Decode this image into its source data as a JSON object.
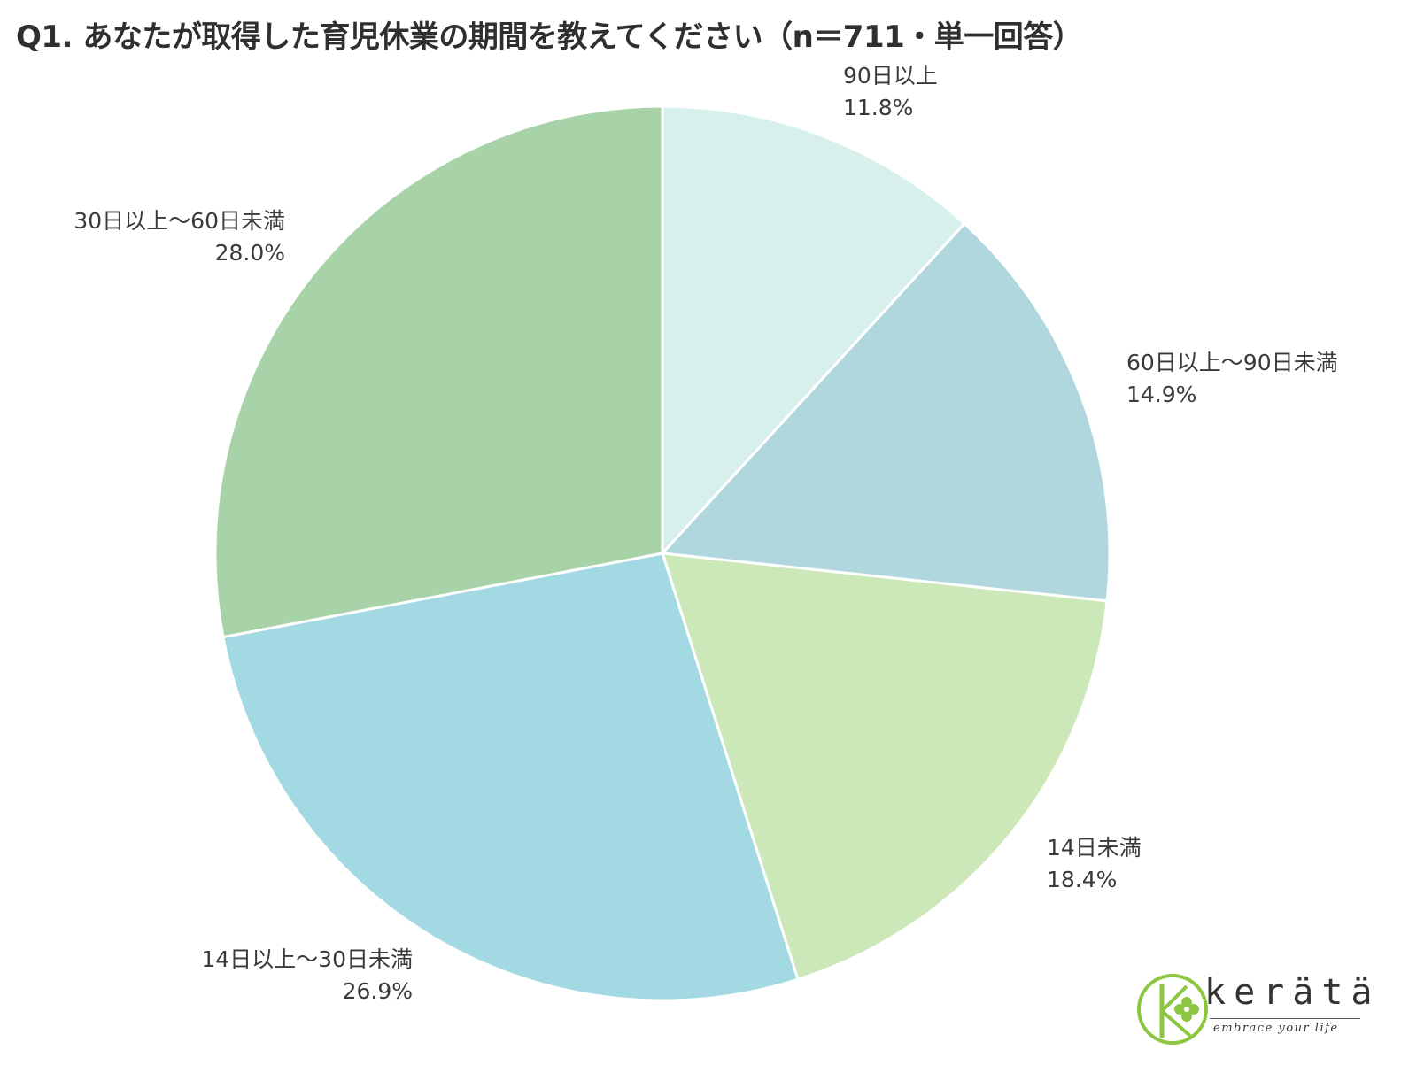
{
  "title": "Q1. あなたが取得した育児休業の期間を教えてください（n＝711・単一回答）",
  "chart_data": {
    "type": "pie",
    "title": "Q1. あなたが取得した育児休業の期間を教えてください（n＝711・単一回答）",
    "start_angle": "12 o'clock",
    "direction": "clockwise",
    "slices": [
      {
        "label": "90日以上",
        "value": 11.8,
        "display": "11.8%",
        "color": "#d8f0ec"
      },
      {
        "label": "60日以上〜90日未満",
        "value": 14.9,
        "display": "14.9%",
        "color": "#b0d7dd"
      },
      {
        "label": "14日未満",
        "value": 18.4,
        "display": "18.4%",
        "color": "#cde8b8"
      },
      {
        "label": "14日以上〜30日未満",
        "value": 26.9,
        "display": "26.9%",
        "color": "#a2d9e3"
      },
      {
        "label": "30日以上〜60日未満",
        "value": 28.0,
        "display": "28.0%",
        "color": "#a8d3a8"
      }
    ]
  },
  "logo": {
    "wordmark": "kerätä",
    "tagline": "embrace your life",
    "accent_color": "#8cc63f"
  }
}
